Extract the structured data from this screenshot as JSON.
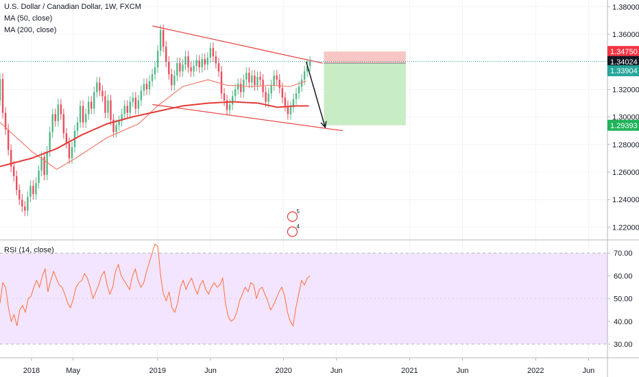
{
  "header": {
    "symbol_line": "U.S. Dollar / Canadian Dollar, 1W, FXCM",
    "ma50_label": "MA (50, close)",
    "ma200_label": "MA (200, close)",
    "rsi_label": "RSI (14, close)"
  },
  "colors": {
    "candle_up": "#53b987",
    "candle_down": "#eb4d5c",
    "ma50": "#f57c6b",
    "ma200": "#e53935",
    "trendline": "#e53935",
    "rsi_line": "#ff6d3a",
    "rsi_band": "#f3e5ff",
    "stop_zone": "#f9c6c6",
    "target_zone": "#c8ecc4",
    "tag_red": "#f23645",
    "tag_dark": "#131722",
    "tag_teal": "#26a69a",
    "tag_green": "#21b35b",
    "grid": "#f0f3fa",
    "border": "#b2b5be"
  },
  "price_tags": {
    "stop": "1.34750",
    "last": "1.34024",
    "entry": "1.33904",
    "target": "1.29393"
  },
  "events": {
    "earnings_count": "5",
    "dividend_count": "4"
  },
  "chart_data": [
    {
      "type": "candlestick",
      "title": "U.S. Dollar / Canadian Dollar, 1W, FXCM",
      "ylim": [
        1.21,
        1.385
      ],
      "y_ticks": [
        "1.22000",
        "1.24000",
        "1.26000",
        "1.28000",
        "1.30000",
        "1.32000",
        "1.34000",
        "1.36000",
        "1.38000"
      ],
      "x_ticks": [
        "2018",
        "May",
        "2019",
        "Jun",
        "2020",
        "Jun",
        "2021",
        "Jun",
        "2022",
        "Jun"
      ],
      "series": [
        {
          "name": "MA (50, close)",
          "points": [
            [
              2017.75,
              1.296
            ],
            [
              2018.0,
              1.275
            ],
            [
              2018.2,
              1.262
            ],
            [
              2018.35,
              1.27
            ],
            [
              2018.6,
              1.285
            ],
            [
              2018.85,
              1.295
            ],
            [
              2019.0,
              1.308
            ],
            [
              2019.2,
              1.322
            ],
            [
              2019.4,
              1.327
            ],
            [
              2019.55,
              1.323
            ],
            [
              2019.75,
              1.322
            ],
            [
              2019.9,
              1.323
            ],
            [
              2020.05,
              1.322
            ],
            [
              2020.18,
              1.326
            ]
          ]
        },
        {
          "name": "MA (200, close)",
          "points": [
            [
              2017.75,
              1.264
            ],
            [
              2018.0,
              1.27
            ],
            [
              2018.2,
              1.277
            ],
            [
              2018.4,
              1.287
            ],
            [
              2018.6,
              1.295
            ],
            [
              2018.8,
              1.3
            ],
            [
              2019.0,
              1.304
            ],
            [
              2019.2,
              1.308
            ],
            [
              2019.4,
              1.31
            ],
            [
              2019.6,
              1.311
            ],
            [
              2019.8,
              1.31
            ],
            [
              2019.95,
              1.307
            ],
            [
              2020.1,
              1.308
            ],
            [
              2020.2,
              1.308
            ]
          ]
        }
      ],
      "candles": [
        [
          1.312,
          1.3275
        ],
        [
          1.3275,
          1.303
        ],
        [
          1.303,
          1.291
        ],
        [
          1.291,
          1.276
        ],
        [
          1.276,
          1.264
        ],
        [
          1.264,
          1.257
        ],
        [
          1.257,
          1.247
        ],
        [
          1.247,
          1.24
        ],
        [
          1.24,
          1.235
        ],
        [
          1.235,
          1.232
        ],
        [
          1.232,
          1.242
        ],
        [
          1.242,
          1.25
        ],
        [
          1.25,
          1.244
        ],
        [
          1.244,
          1.252
        ],
        [
          1.252,
          1.261
        ],
        [
          1.261,
          1.271
        ],
        [
          1.271,
          1.258
        ],
        [
          1.258,
          1.275
        ],
        [
          1.275,
          1.289
        ],
        [
          1.289,
          1.302
        ],
        [
          1.302,
          1.297
        ],
        [
          1.297,
          1.309
        ],
        [
          1.309,
          1.302
        ],
        [
          1.302,
          1.288
        ],
        [
          1.288,
          1.281
        ],
        [
          1.281,
          1.27
        ],
        [
          1.27,
          1.278
        ],
        [
          1.278,
          1.29
        ],
        [
          1.29,
          1.296
        ],
        [
          1.296,
          1.308
        ],
        [
          1.308,
          1.296
        ],
        [
          1.296,
          1.302
        ],
        [
          1.302,
          1.311
        ],
        [
          1.311,
          1.306
        ],
        [
          1.306,
          1.318
        ],
        [
          1.318,
          1.325
        ],
        [
          1.325,
          1.319
        ],
        [
          1.319,
          1.315
        ],
        [
          1.315,
          1.303
        ],
        [
          1.303,
          1.312
        ],
        [
          1.312,
          1.298
        ],
        [
          1.298,
          1.289
        ],
        [
          1.289,
          1.294
        ],
        [
          1.294,
          1.297
        ],
        [
          1.297,
          1.302
        ],
        [
          1.302,
          1.308
        ],
        [
          1.308,
          1.303
        ],
        [
          1.303,
          1.311
        ],
        [
          1.311,
          1.314
        ],
        [
          1.314,
          1.306
        ],
        [
          1.306,
          1.312
        ],
        [
          1.312,
          1.319
        ],
        [
          1.319,
          1.324
        ],
        [
          1.324,
          1.32
        ],
        [
          1.32,
          1.326
        ],
        [
          1.326,
          1.331
        ],
        [
          1.331,
          1.336
        ],
        [
          1.336,
          1.348
        ],
        [
          1.348,
          1.363
        ],
        [
          1.363,
          1.351
        ],
        [
          1.351,
          1.34
        ],
        [
          1.34,
          1.331
        ],
        [
          1.331,
          1.323
        ],
        [
          1.323,
          1.33
        ],
        [
          1.33,
          1.339
        ],
        [
          1.339,
          1.333
        ],
        [
          1.333,
          1.338
        ],
        [
          1.338,
          1.344
        ],
        [
          1.344,
          1.336
        ],
        [
          1.336,
          1.333
        ],
        [
          1.333,
          1.337
        ],
        [
          1.337,
          1.341
        ],
        [
          1.341,
          1.336
        ],
        [
          1.336,
          1.342
        ],
        [
          1.342,
          1.338
        ],
        [
          1.338,
          1.343
        ],
        [
          1.343,
          1.35
        ],
        [
          1.35,
          1.344
        ],
        [
          1.344,
          1.339
        ],
        [
          1.339,
          1.333
        ],
        [
          1.333,
          1.317
        ],
        [
          1.317,
          1.312
        ],
        [
          1.312,
          1.305
        ],
        [
          1.305,
          1.309
        ],
        [
          1.309,
          1.315
        ],
        [
          1.315,
          1.32
        ],
        [
          1.32,
          1.324
        ],
        [
          1.324,
          1.318
        ],
        [
          1.318,
          1.327
        ],
        [
          1.327,
          1.332
        ],
        [
          1.332,
          1.325
        ],
        [
          1.325,
          1.33
        ],
        [
          1.33,
          1.323
        ],
        [
          1.323,
          1.329
        ],
        [
          1.329,
          1.327
        ],
        [
          1.327,
          1.318
        ],
        [
          1.318,
          1.311
        ],
        [
          1.311,
          1.317
        ],
        [
          1.317,
          1.323
        ],
        [
          1.323,
          1.33
        ],
        [
          1.33,
          1.327
        ],
        [
          1.327,
          1.321
        ],
        [
          1.321,
          1.314
        ],
        [
          1.314,
          1.308
        ],
        [
          1.308,
          1.302
        ],
        [
          1.302,
          1.307
        ],
        [
          1.307,
          1.313
        ],
        [
          1.313,
          1.317
        ],
        [
          1.317,
          1.322
        ],
        [
          1.322,
          1.327
        ],
        [
          1.327,
          1.333
        ],
        [
          1.333,
          1.337
        ],
        [
          1.337,
          1.34
        ]
      ],
      "trendlines": [
        [
          [
            2018.96,
            1.366
          ],
          [
            2020.31,
            1.339
          ]
        ],
        [
          [
            2018.96,
            1.309
          ],
          [
            2020.47,
            1.29
          ]
        ]
      ],
      "projection_arrow": [
        [
          2020.18,
          1.34
        ],
        [
          2020.33,
          1.2925
        ]
      ],
      "position": {
        "stop": 1.3475,
        "entry": 1.33904,
        "target": 1.29393
      }
    },
    {
      "type": "line",
      "title": "RSI (14, close)",
      "ylim": [
        27,
        77
      ],
      "bands": [
        30,
        70
      ],
      "y_ticks": [
        "30.00",
        "40.00",
        "50.00",
        "60.00",
        "70.00"
      ],
      "values": [
        48,
        57,
        55,
        46,
        40,
        43,
        38,
        45,
        47,
        44,
        50,
        51,
        55,
        58,
        55,
        60,
        63,
        53,
        58,
        62,
        59,
        56,
        55,
        52,
        48,
        46,
        50,
        55,
        57,
        58,
        61,
        59,
        55,
        50,
        53,
        56,
        60,
        62,
        56,
        52,
        55,
        62,
        65,
        60,
        58,
        56,
        54,
        60,
        63,
        58,
        55,
        57,
        62,
        66,
        70,
        74,
        73,
        60,
        52,
        49,
        53,
        46,
        44,
        48,
        55,
        58,
        54,
        57,
        59,
        55,
        52,
        56,
        58,
        54,
        52,
        55,
        57,
        55,
        56,
        59,
        48,
        42,
        40,
        41,
        44,
        49,
        52,
        55,
        53,
        57,
        56,
        50,
        54,
        55,
        52,
        49,
        45,
        47,
        50,
        53,
        55,
        51,
        44,
        40,
        38,
        46,
        52,
        58,
        56,
        59,
        60
      ]
    }
  ]
}
